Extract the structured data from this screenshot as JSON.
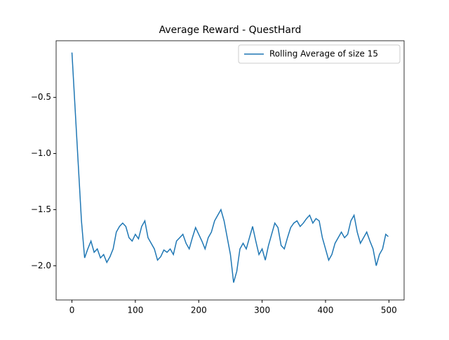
{
  "chart_data": {
    "type": "line",
    "title": "Average Reward - QuestHard",
    "x": [
      0,
      5,
      10,
      15,
      20,
      25,
      30,
      35,
      40,
      45,
      50,
      55,
      60,
      65,
      70,
      75,
      80,
      85,
      90,
      95,
      100,
      105,
      110,
      115,
      120,
      125,
      130,
      135,
      140,
      145,
      150,
      155,
      160,
      165,
      170,
      175,
      180,
      185,
      190,
      195,
      200,
      205,
      210,
      215,
      220,
      225,
      230,
      235,
      240,
      245,
      250,
      255,
      260,
      265,
      270,
      275,
      280,
      285,
      290,
      295,
      300,
      305,
      310,
      315,
      320,
      325,
      330,
      335,
      340,
      345,
      350,
      355,
      360,
      365,
      370,
      375,
      380,
      385,
      390,
      395,
      400,
      405,
      410,
      415,
      420,
      425,
      430,
      435,
      440,
      445,
      450,
      455,
      460,
      465,
      470,
      475,
      480,
      485,
      490,
      495,
      499
    ],
    "series": [
      {
        "name": "Rolling Average of size 15",
        "color": "#1f77b4",
        "values": [
          -0.1,
          -0.6,
          -1.1,
          -1.6,
          -1.93,
          -1.85,
          -1.78,
          -1.88,
          -1.85,
          -1.93,
          -1.9,
          -1.97,
          -1.92,
          -1.85,
          -1.7,
          -1.65,
          -1.62,
          -1.65,
          -1.75,
          -1.78,
          -1.72,
          -1.76,
          -1.65,
          -1.6,
          -1.75,
          -1.8,
          -1.85,
          -1.95,
          -1.92,
          -1.86,
          -1.88,
          -1.85,
          -1.9,
          -1.78,
          -1.75,
          -1.72,
          -1.8,
          -1.85,
          -1.75,
          -1.66,
          -1.72,
          -1.78,
          -1.85,
          -1.75,
          -1.7,
          -1.6,
          -1.55,
          -1.5,
          -1.6,
          -1.75,
          -1.9,
          -2.15,
          -2.05,
          -1.85,
          -1.8,
          -1.85,
          -1.75,
          -1.65,
          -1.78,
          -1.9,
          -1.85,
          -1.95,
          -1.82,
          -1.72,
          -1.62,
          -1.66,
          -1.82,
          -1.85,
          -1.75,
          -1.66,
          -1.62,
          -1.6,
          -1.65,
          -1.62,
          -1.58,
          -1.55,
          -1.62,
          -1.58,
          -1.6,
          -1.75,
          -1.85,
          -1.95,
          -1.9,
          -1.8,
          -1.75,
          -1.7,
          -1.75,
          -1.72,
          -1.6,
          -1.55,
          -1.7,
          -1.8,
          -1.75,
          -1.7,
          -1.78,
          -1.85,
          -2.0,
          -1.9,
          -1.85,
          -1.72,
          -1.74
        ]
      }
    ],
    "xlim": [
      -24.95,
      523.95
    ],
    "ylim": [
      -2.305,
      0.005
    ],
    "xticks": [
      0,
      100,
      200,
      300,
      400,
      500
    ],
    "yticks": [
      {
        "value": -2.0,
        "label": "−2.0"
      },
      {
        "value": -1.5,
        "label": "−1.5"
      },
      {
        "value": -1.0,
        "label": "−1.0"
      },
      {
        "value": -0.5,
        "label": "−0.5"
      }
    ],
    "legend": "upper right"
  }
}
